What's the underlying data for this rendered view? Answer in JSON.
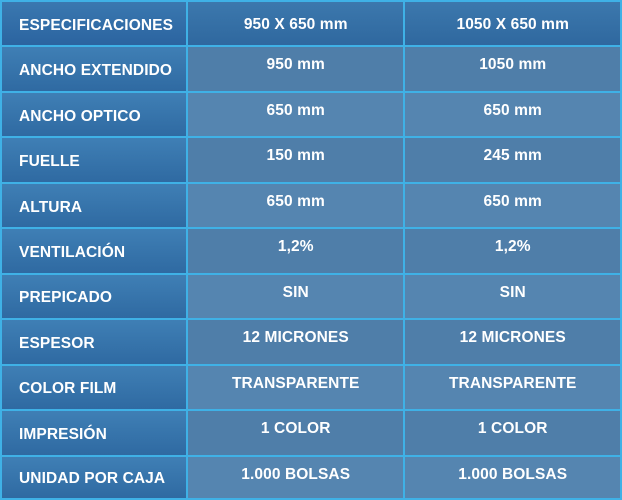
{
  "table": {
    "header": {
      "label": "ESPECIFICACIONES",
      "col_a": "950 X 650 mm",
      "col_b": "1050 X 650 mm"
    },
    "rows": [
      {
        "label": "ANCHO EXTENDIDO",
        "a": "950 mm",
        "b": "1050 mm"
      },
      {
        "label": "ANCHO OPTICO",
        "a": "650 mm",
        "b": "650 mm"
      },
      {
        "label": "FUELLE",
        "a": "150 mm",
        "b": "245 mm"
      },
      {
        "label": "ALTURA",
        "a": "650 mm",
        "b": "650 mm"
      },
      {
        "label": "VENTILACIÓN",
        "a": "1,2%",
        "b": "1,2%"
      },
      {
        "label": "PREPICADO",
        "a": "SIN",
        "b": "SIN"
      },
      {
        "label": "ESPESOR",
        "a": "12 MICRONES",
        "b": "12 MICRONES"
      },
      {
        "label": "COLOR FILM",
        "a": "TRANSPARENTE",
        "b": "TRANSPARENTE"
      },
      {
        "label": "IMPRESIÓN",
        "a": "1 COLOR",
        "b": "1 COLOR"
      },
      {
        "label": "UNIDAD POR CAJA",
        "a": "1.000 BOLSAS",
        "b": "1.000 BOLSAS"
      }
    ]
  },
  "colors": {
    "border": "#3fb1e6",
    "label_bg": "#3470a7",
    "value_bg_odd": "#4f7ea9",
    "value_bg_even": "#5585b0",
    "text": "#ffffff"
  }
}
